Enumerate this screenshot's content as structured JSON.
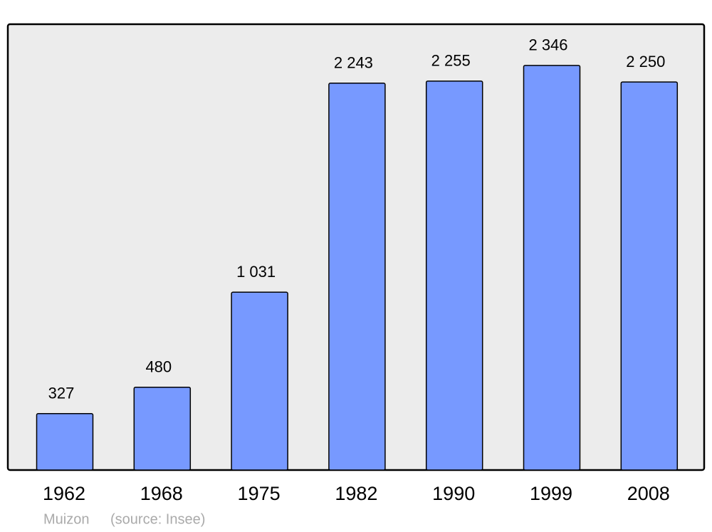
{
  "chart_data": {
    "type": "bar",
    "categories": [
      "1962",
      "1968",
      "1975",
      "1982",
      "1990",
      "1999",
      "2008"
    ],
    "values": [
      327,
      480,
      1031,
      2243,
      2255,
      2346,
      2250
    ],
    "value_labels": [
      "327",
      "480",
      "1 031",
      "2 243",
      "2 255",
      "2 346",
      "2 250"
    ],
    "color": "#7799ff",
    "caption": "Muizon",
    "source": "(source: Insee)"
  }
}
